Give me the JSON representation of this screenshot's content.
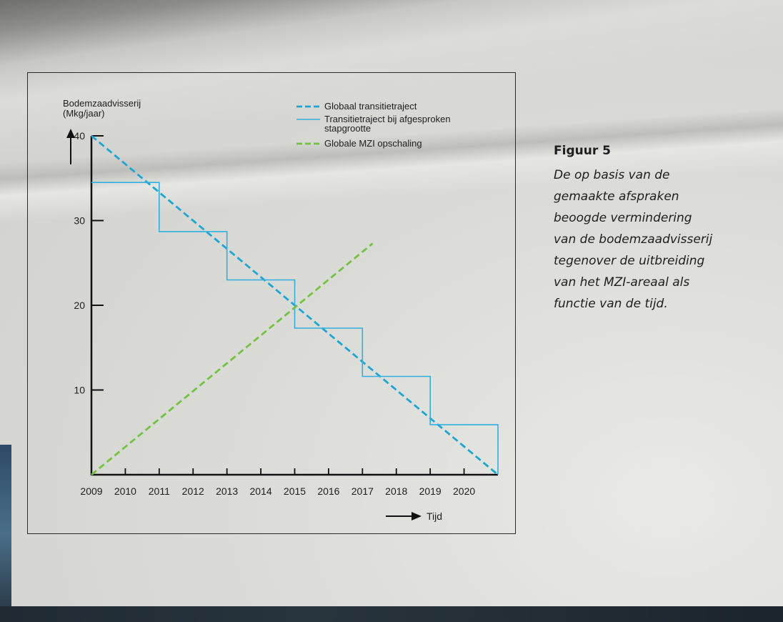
{
  "figure": {
    "title": "Figuur 5",
    "caption": "De op basis van de gemaakte afspraken beoogde vermindering van de bodemzaadvisserij tegenover de uitbreiding van het MZI-areaal als functie van de tijd.",
    "caption_lines": [
      "De op basis van de",
      "gemaakte afspraken",
      "beoogde vermindering",
      "van de bodemzaadvisserij",
      "tegenover de uitbreiding",
      "van het MZI-areaal als",
      "functie van de tijd."
    ]
  },
  "chart_data": {
    "type": "line",
    "ylabel_lines": [
      "Bodemzaadvisserij",
      "(Mkg/jaar)"
    ],
    "xlabel": "Tijd",
    "x_ticks": [
      "2009",
      "2010",
      "2011",
      "2012",
      "2013",
      "2014",
      "2015",
      "2016",
      "2017",
      "2018",
      "2019",
      "2020"
    ],
    "y_ticks": [
      10,
      20,
      30,
      40
    ],
    "ylim": [
      0,
      40
    ],
    "xlim": [
      2009,
      2021
    ],
    "grid": false,
    "legend_position": "top-right",
    "legend_entries": [
      {
        "label_lines": [
          "Globaal transitietraject"
        ],
        "style": "dashed",
        "color": "#1aa7d6"
      },
      {
        "label_lines": [
          "Transitietraject bij afgesproken",
          "stapgrootte"
        ],
        "style": "solid",
        "color": "#2fb0e0"
      },
      {
        "label_lines": [
          "Globale MZI opschaling"
        ],
        "style": "dashed",
        "color": "#72c43f"
      }
    ],
    "series": [
      {
        "name": "Globaal transitietraject",
        "style": "dashed",
        "color": "#1aa7d6",
        "x": [
          2009,
          2021
        ],
        "y": [
          40,
          0
        ]
      },
      {
        "name": "Transitietraject bij afgesproken stapgrootte",
        "style": "step",
        "color": "#2fb0e0",
        "x": [
          2009,
          2011,
          2011,
          2013,
          2013,
          2015,
          2015,
          2017,
          2017,
          2019,
          2019,
          2021,
          2021
        ],
        "y": [
          34.5,
          34.5,
          28.7,
          28.7,
          23,
          23,
          17.3,
          17.3,
          11.6,
          11.6,
          5.9,
          5.9,
          0
        ]
      },
      {
        "name": "Globale MZI opschaling",
        "style": "dashed",
        "color": "#72c43f",
        "x": [
          2009,
          2017.3
        ],
        "y": [
          0,
          27.3
        ]
      }
    ]
  }
}
